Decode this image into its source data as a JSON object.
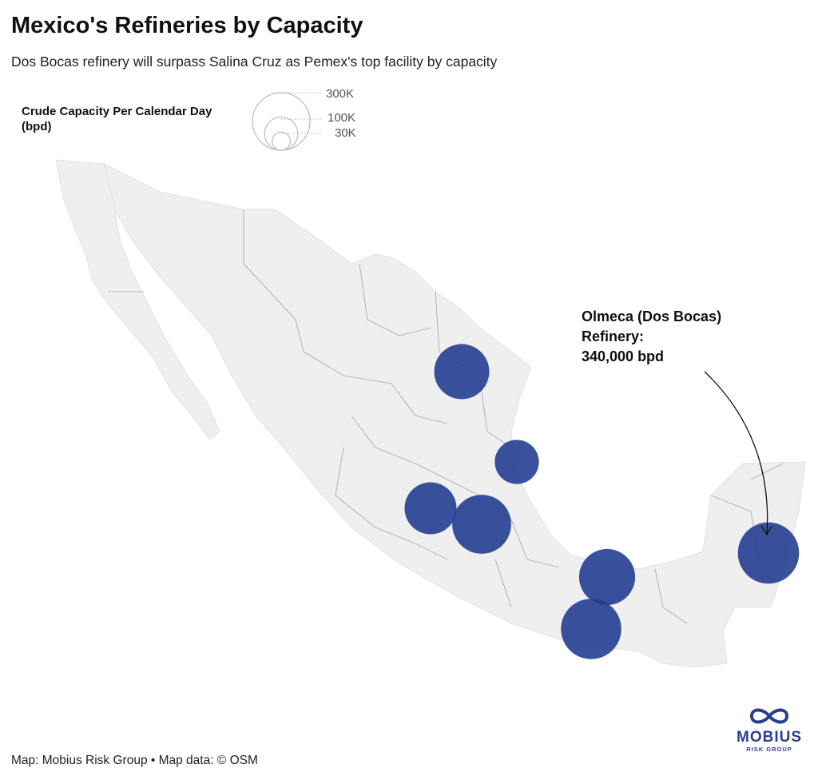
{
  "header": {
    "title": "Mexico's Refineries by Capacity",
    "subtitle": "Dos Bocas refinery will surpass Salina Cruz as Pemex's top facility by capacity"
  },
  "legend": {
    "title_line1": "Crude Capacity Per Calendar Day",
    "title_line2": "(bpd)",
    "sizes": [
      {
        "label": "300K",
        "value": 300000
      },
      {
        "label": "100K",
        "value": 100000
      },
      {
        "label": "30K",
        "value": 30000
      }
    ]
  },
  "refineries": [
    {
      "capacity_bpd": 275000
    },
    {
      "capacity_bpd": 177000
    },
    {
      "capacity_bpd": 245000
    },
    {
      "capacity_bpd": 315000
    },
    {
      "capacity_bpd": 285000
    },
    {
      "capacity_bpd": 330000
    },
    {
      "capacity_bpd": 340000
    }
  ],
  "annotation": {
    "line1": "Olmeca (Dos Bocas)",
    "line2": "Refinery:",
    "line3": "340,000 bpd"
  },
  "footer": {
    "credit": "Map: Mobius Risk Group • Map data: © OSM"
  },
  "logo": {
    "name": "MOBIUS",
    "tagline": "RISK GROUP"
  },
  "colors": {
    "bubble": "#1f3a8f",
    "land": "#efefef",
    "border": "#8a8a8a"
  }
}
